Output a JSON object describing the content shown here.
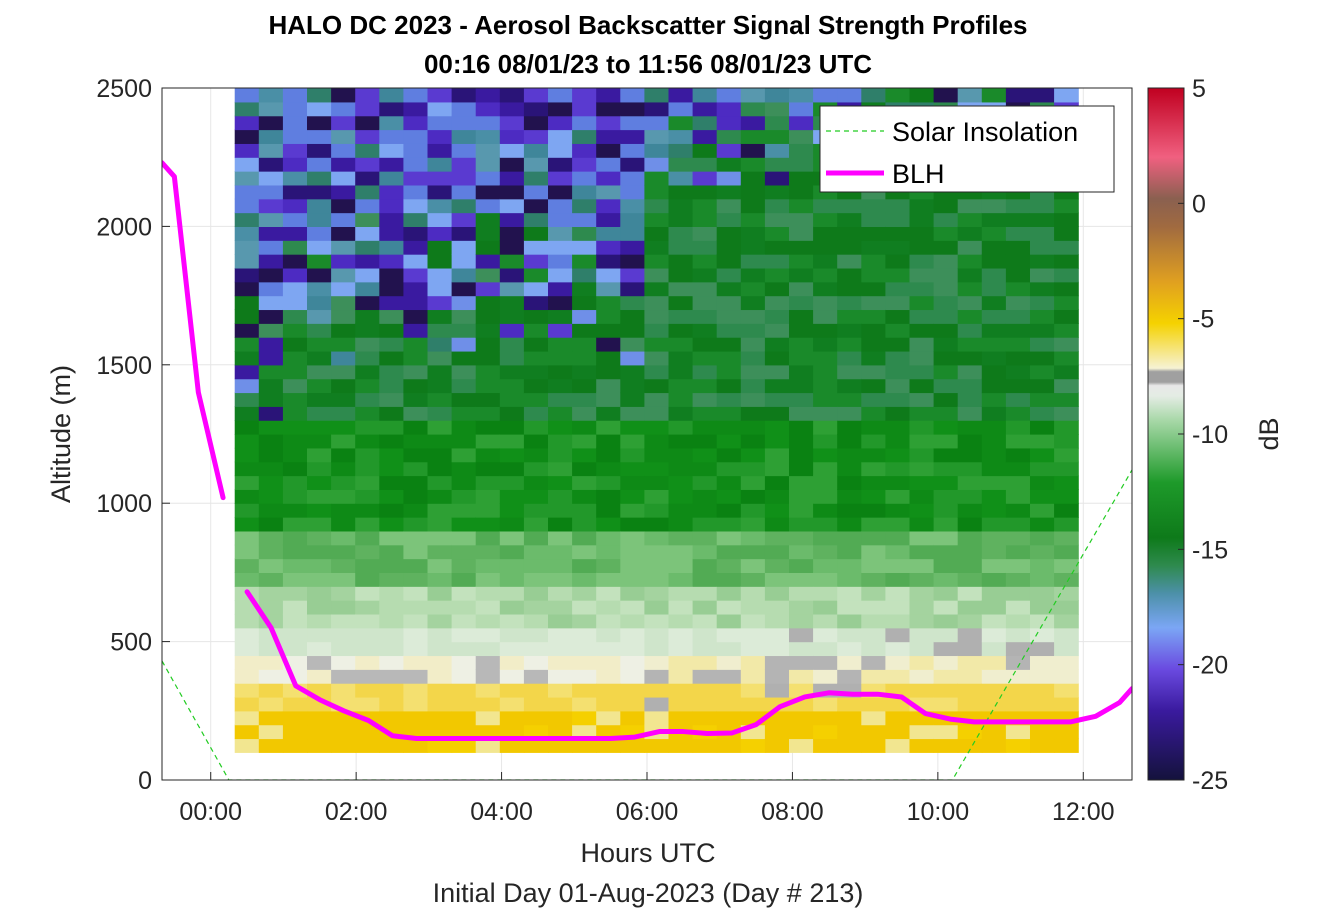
{
  "chart_data": {
    "type": "heatmap",
    "title": "HALO DC 2023 - Aerosol Backscatter Signal Strength Profiles",
    "subtitle": "00:16 08/01/23 to 11:56 08/01/23  UTC",
    "xlabel": "Hours UTC",
    "xlabel2": "Initial Day 01-Aug-2023 (Day # 213)",
    "ylabel": "Altitude (m)",
    "colorbar_label": "dB",
    "xlim": [
      -0.67,
      12.67
    ],
    "ylim": [
      0,
      2500
    ],
    "x_ticks": [
      "00:00",
      "02:00",
      "04:00",
      "06:00",
      "08:00",
      "10:00",
      "12:00"
    ],
    "x_tick_values": [
      0,
      2,
      4,
      6,
      8,
      10,
      12
    ],
    "y_ticks": [
      "0",
      "500",
      "1000",
      "1500",
      "2000",
      "2500"
    ],
    "y_tick_values": [
      0,
      500,
      1000,
      1500,
      2000,
      2500
    ],
    "colorbar_ticks": [
      "5",
      "0",
      "-5",
      "-10",
      "-15",
      "-20",
      "-25"
    ],
    "colorbar_tick_values": [
      5,
      0,
      -5,
      -10,
      -15,
      -20,
      -25
    ],
    "clim": [
      -25,
      5
    ],
    "grid": true,
    "legend_position": "top-right",
    "series": [
      {
        "name": "Solar Insolation",
        "style": "dashed",
        "color": "#22cc22",
        "x": [
          -0.67,
          0.25,
          10.2,
          12.67
        ],
        "y": [
          430,
          0,
          0,
          1120
        ]
      },
      {
        "name": "BLH",
        "style": "solid",
        "color": "#ff00ff",
        "segments": [
          {
            "x": [
              -0.67,
              -0.5,
              -0.17,
              0.17
            ],
            "y": [
              2230,
              2180,
              1400,
              1020
            ]
          },
          {
            "x": [
              0.5,
              0.83,
              1.17,
              1.5,
              1.83,
              2.17,
              2.5,
              2.83,
              3.17,
              3.5,
              4.0,
              4.5,
              5.0,
              5.5,
              5.83,
              6.17,
              6.5,
              6.83,
              7.17,
              7.5,
              7.83,
              8.17,
              8.5,
              8.83,
              9.17,
              9.5,
              9.83,
              10.17,
              10.5,
              10.83,
              11.17,
              11.5,
              11.83,
              12.17,
              12.5,
              12.67
            ],
            "y": [
              680,
              550,
              340,
              290,
              250,
              215,
              160,
              150,
              150,
              150,
              150,
              150,
              150,
              150,
              155,
              175,
              175,
              168,
              170,
              200,
              265,
              300,
              315,
              310,
              310,
              300,
              240,
              220,
              210,
              210,
              210,
              210,
              210,
              230,
              280,
              330
            ]
          }
        ]
      }
    ],
    "heatmap": {
      "x_start": 0.33,
      "x_end": 11.93,
      "y_start": 100,
      "y_end": 2500,
      "columns": 35,
      "rows": 48,
      "value_units": "dB",
      "description": "Backscatter signal strength: strong (~ -5 dB, yellow/orange) below ~300 m, transitioning to white-green (~ -10 to -12 dB) near 400-700 m, green (~ -15 dB) through 800-1800 m, and weak purple/blue (~ -20 to -24 dB) above ~1600 m in the first half of the period."
    }
  }
}
